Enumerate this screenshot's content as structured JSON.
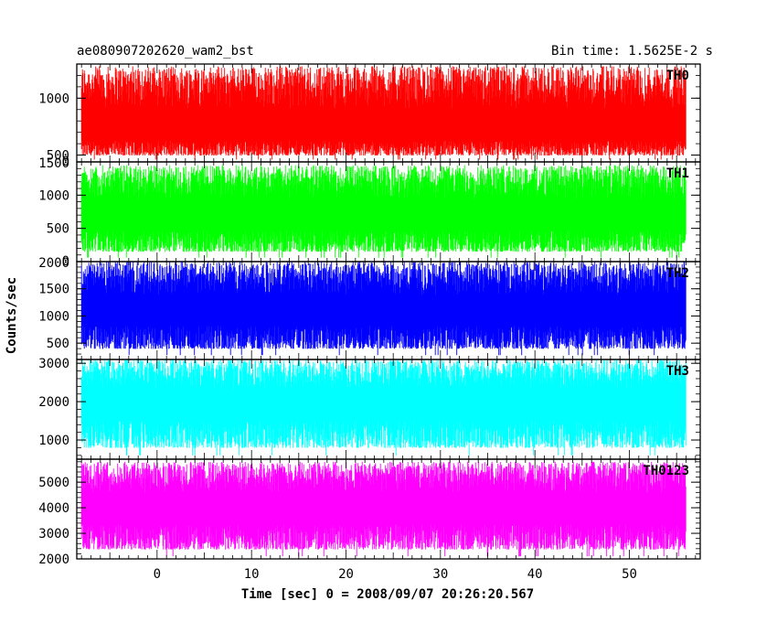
{
  "chart_data": {
    "type": "line",
    "title_left": "ae080907202620_wam2_bst",
    "title_right": "Bin time: 1.5625E-2 s",
    "xlabel": "Time [sec] 0 = 2008/09/07 20:26:20.567",
    "ylabel": "Counts/sec",
    "xlim": [
      -8.5,
      57.5
    ],
    "x_ticks": [
      0,
      10,
      20,
      30,
      40,
      50
    ],
    "data_x_range": [
      -8,
      56
    ],
    "panels": [
      {
        "name": "TH0",
        "color": "#ff0000",
        "ylim": [
          440,
          1300
        ],
        "y_ticks": [
          500,
          1000
        ],
        "bottom_label": "0",
        "low": 460,
        "high": 1280,
        "mean": 700
      },
      {
        "name": "TH1",
        "color": "#00ff00",
        "ylim": [
          0,
          1500
        ],
        "y_ticks": [
          500,
          1000
        ],
        "bottom_label": "0",
        "top_label": "1500",
        "low": 60,
        "high": 1450,
        "mean": 650
      },
      {
        "name": "TH2",
        "color": "#0000ff",
        "ylim": [
          200,
          2000
        ],
        "y_ticks": [
          500,
          1000,
          1500
        ],
        "top_label": "2000",
        "low": 280,
        "high": 2000,
        "mean": 1050
      },
      {
        "name": "TH3",
        "color": "#00ffff",
        "ylim": [
          500,
          3100
        ],
        "y_ticks": [
          1000,
          2000,
          3000
        ],
        "low": 600,
        "high": 3100,
        "mean": 1900
      },
      {
        "name": "TH0123",
        "color": "#ff00ff",
        "ylim": [
          2000,
          5900
        ],
        "y_ticks": [
          2000,
          3000,
          4000,
          5000
        ],
        "low": 2100,
        "high": 5800,
        "mean": 3900
      }
    ]
  }
}
